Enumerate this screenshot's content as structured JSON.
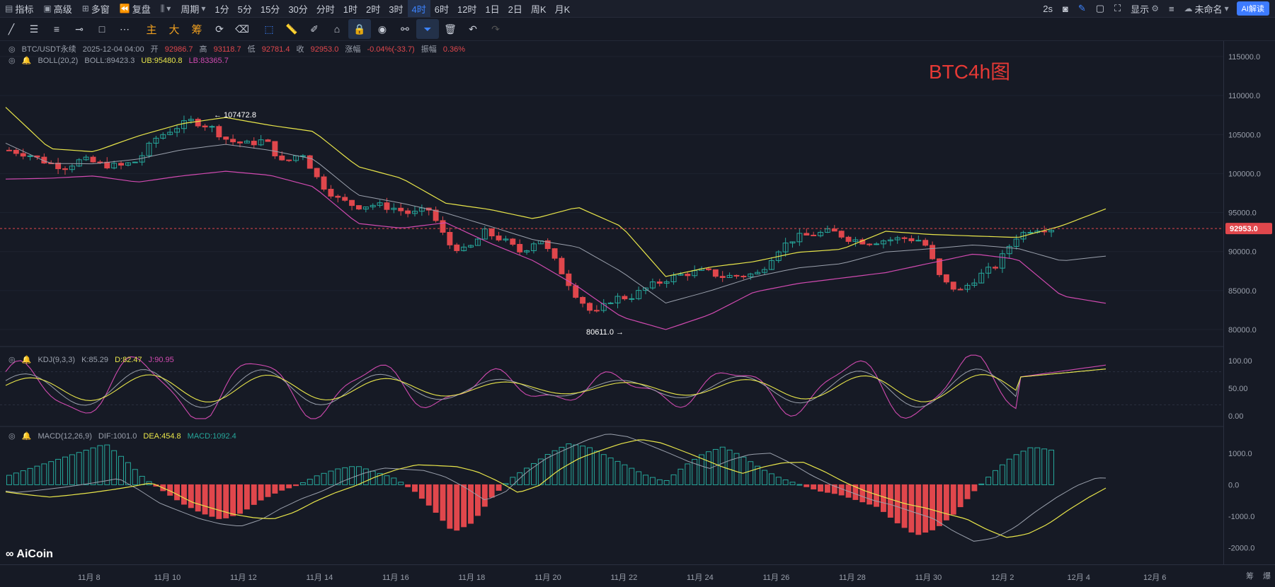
{
  "topbar": {
    "indicator_label": "指标",
    "advanced_label": "高级",
    "multiwindow_label": "多窗",
    "replay_label": "复盘",
    "period_label": "周期",
    "periods": [
      "1分",
      "5分",
      "15分",
      "30分",
      "分时",
      "1时",
      "2时",
      "3时",
      "4时",
      "6时",
      "12时",
      "1日",
      "2日",
      "周K",
      "月K"
    ],
    "active_period": "4时",
    "refresh_label": "2s",
    "display_label": "显示",
    "layout_name": "未命名",
    "ai_label": "AI解读"
  },
  "drawing_tools": {
    "main_label": "主",
    "big_label": "大",
    "chip_label": "筹"
  },
  "main_legend": {
    "symbol": "BTC/USDT永续",
    "datetime": "2025-12-04 04:00",
    "open_label": "开",
    "open": "92986.7",
    "high_label": "高",
    "high": "93118.7",
    "low_label": "低",
    "low": "92781.4",
    "close_label": "收",
    "close": "92953.0",
    "change_label": "涨幅",
    "change": "-0.04%(-33.7)",
    "amplitude_label": "振幅",
    "amplitude": "0.36%"
  },
  "boll_legend": {
    "name": "BOLL(20,2)",
    "boll": "BOLL:89423.3",
    "ub": "UB:95480.8",
    "lb": "LB:83365.7"
  },
  "kdj_legend": {
    "name": "KDJ(9,3,3)",
    "k": "K:85.29",
    "d": "D:82.47",
    "j": "J:90.95"
  },
  "macd_legend": {
    "name": "MACD(12,26,9)",
    "dif": "DIF:1001.0",
    "dea": "DEA:454.8",
    "macd": "MACD:1092.4"
  },
  "annotation_title": "BTC4h图",
  "high_marker": "107472.8",
  "low_marker": "80611.0",
  "current_price": "92953.0",
  "price_ticks": [
    "115000.0",
    "110000.0",
    "105000.0",
    "100000.0",
    "95000.0",
    "90000.0",
    "85000.0",
    "80000.0"
  ],
  "kdj_ticks": [
    "100.00",
    "50.00",
    "0.00"
  ],
  "macd_ticks": [
    "1000.0",
    "0.0",
    "-1000.0",
    "-2000.0"
  ],
  "date_ticks": [
    "11月 8",
    "11月 10",
    "11月 12",
    "11月 14",
    "11月 16",
    "11月 18",
    "11月 20",
    "11月 22",
    "11月 24",
    "11月 26",
    "11月 28",
    "11月 30",
    "12月 2",
    "12月 4",
    "12月 6"
  ],
  "logo_text": "AiCoin",
  "corner_labels": [
    "筹",
    "爆"
  ],
  "colors": {
    "up": "#26a69a",
    "down": "#e0474c",
    "boll_upper": "#e8e54a",
    "boll_lower": "#d04ab0",
    "boll_mid": "#9aa0ac",
    "accent": "#3d84ff",
    "title_red": "#e53935"
  },
  "chart_data": {
    "type": "candlestick",
    "price_range": [
      78000,
      117000
    ],
    "x_dates": [
      "11月 8",
      "11月 10",
      "11月 12",
      "11月 14",
      "11月 16",
      "11月 18",
      "11月 20",
      "11月 22",
      "11月 24",
      "11月 26",
      "11月 28",
      "11月 30",
      "12月 2",
      "12月 4"
    ],
    "close_path": [
      103000,
      102500,
      101500,
      100800,
      101800,
      101200,
      100900,
      101600,
      104500,
      105800,
      106800,
      106000,
      104200,
      103800,
      104300,
      101200,
      102800,
      98800,
      96700,
      95800,
      96000,
      95600,
      94800,
      95400,
      91000,
      90000,
      92500,
      91500,
      89900,
      91800,
      88200,
      84500,
      81800,
      84000,
      84200,
      85500,
      86500,
      87200,
      87500,
      86800,
      86900,
      87200,
      90200,
      91800,
      92200,
      92600,
      91600,
      91200,
      91500,
      91700,
      91400,
      86200,
      84900,
      86800,
      88200,
      91800,
      93000,
      92953
    ],
    "boll_upper": [
      108500,
      103200,
      102800,
      104800,
      106400,
      107200,
      106200,
      105400,
      100900,
      99400,
      96200,
      95400,
      94200,
      95700,
      93200,
      86800,
      88000,
      88700,
      89900,
      90300,
      92600,
      92200,
      92000,
      91800,
      93300,
      95480
    ],
    "boll_lower": [
      99300,
      99400,
      99700,
      98900,
      99700,
      100300,
      99800,
      98300,
      93600,
      93000,
      93700,
      91100,
      88800,
      85500,
      81600,
      80000,
      81900,
      84800,
      85900,
      86600,
      87300,
      88500,
      89700,
      89000,
      84300,
      83365
    ],
    "kdj": {
      "k": 85.29,
      "d": 82.47,
      "j": 90.95
    },
    "macd": {
      "dif": 1001.0,
      "dea": 454.8,
      "macd": 1092.4,
      "range": [
        -2300,
        1400
      ]
    }
  }
}
